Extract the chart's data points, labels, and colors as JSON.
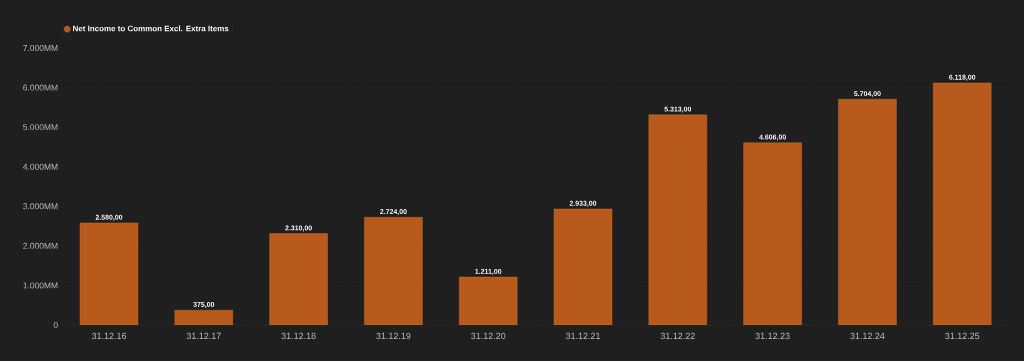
{
  "chart_data": {
    "type": "bar",
    "categories": [
      "31.12.16",
      "31.12.17",
      "31.12.18",
      "31.12.19",
      "31.12.20",
      "31.12.21",
      "31.12.22",
      "31.12.23",
      "31.12.24",
      "31.12.25"
    ],
    "series": [
      {
        "name": "Net Income to Common Excl. Extra Items",
        "color": "#b95a1d",
        "values": [
          2580,
          375,
          2310,
          2724,
          1211,
          2933,
          5313,
          4606,
          5704,
          6118
        ],
        "value_labels": [
          "2.580,00",
          "375,00",
          "2.310,00",
          "2.724,00",
          "1.211,00",
          "2.933,00",
          "5.313,00",
          "4.606,00",
          "5.704,00",
          "6.118,00"
        ]
      }
    ],
    "ylim": [
      0,
      7000
    ],
    "yticks": [
      0,
      {
        "value": 1000,
        "label": "1.000MM"
      },
      {
        "value": 2000,
        "label": "2.000MM"
      },
      {
        "value": 3000,
        "label": "3.000MM"
      },
      {
        "value": 4000,
        "label": "4.000MM"
      },
      {
        "value": 5000,
        "label": "5.000MM"
      },
      {
        "value": 6000,
        "label": "6.000MM"
      },
      {
        "value": 7000,
        "label": "7.000MM"
      }
    ],
    "grid": "y",
    "legend": "top left"
  }
}
